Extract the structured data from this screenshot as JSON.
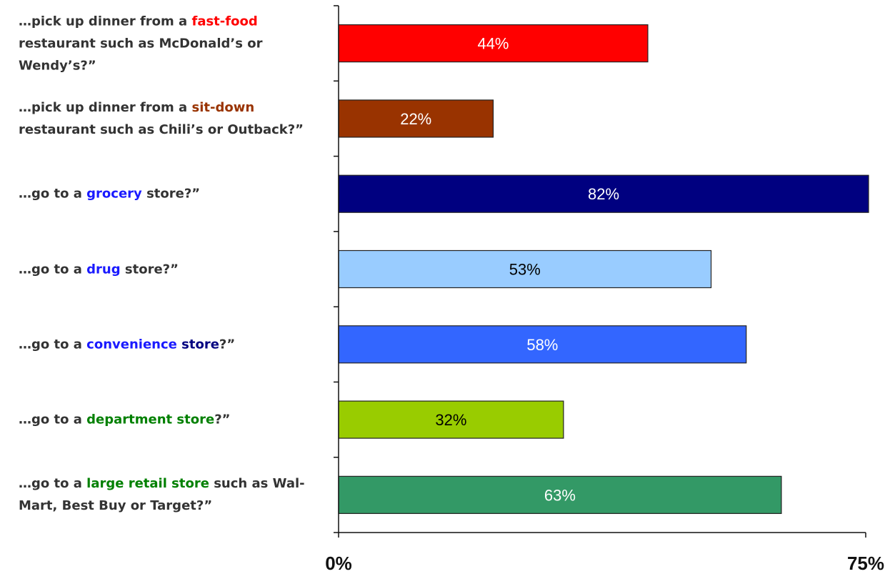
{
  "chart_data": {
    "type": "bar",
    "orientation": "horizontal",
    "categories": [
      [
        {
          "text": "…pick up dinner from a ",
          "color": "#333333"
        },
        {
          "text": "fast-food",
          "color": "#ff0000"
        },
        {
          "text": " restaurant such as McDonald’s or Wendy’s?”",
          "color": "#333333"
        }
      ],
      [
        {
          "text": "…pick up dinner from a ",
          "color": "#333333"
        },
        {
          "text": "sit-down",
          "color": "#993300"
        },
        {
          "text": " restaurant such as Chili’s or Outback?”",
          "color": "#333333"
        }
      ],
      [
        {
          "text": "…go to a ",
          "color": "#333333"
        },
        {
          "text": "grocery",
          "color": "#1a1aff"
        },
        {
          "text": " store?”",
          "color": "#333333"
        }
      ],
      [
        {
          "text": "…go to a ",
          "color": "#333333"
        },
        {
          "text": "drug",
          "color": "#1a1aff"
        },
        {
          "text": " store?”",
          "color": "#333333"
        }
      ],
      [
        {
          "text": "…go to a ",
          "color": "#333333"
        },
        {
          "text": "convenience",
          "color": "#1a1aff"
        },
        {
          "text": " ",
          "color": "#333333"
        },
        {
          "text": "store",
          "color": "#000080"
        },
        {
          "text": "?”",
          "color": "#333333"
        }
      ],
      [
        {
          "text": "…go to a ",
          "color": "#333333"
        },
        {
          "text": "department store",
          "color": "#008000"
        },
        {
          "text": "?”",
          "color": "#333333"
        }
      ],
      [
        {
          "text": "…go to a ",
          "color": "#333333"
        },
        {
          "text": "large retail store",
          "color": "#008000"
        },
        {
          "text": " such as Wal-Mart, Best Buy or Target?”",
          "color": "#333333"
        }
      ]
    ],
    "values": [
      44,
      22,
      82,
      53,
      58,
      32,
      63
    ],
    "value_labels": [
      "44%",
      "22%",
      "82%",
      "53%",
      "58%",
      "32%",
      "63%"
    ],
    "bar_colors": [
      "#ff0000",
      "#993300",
      "#000080",
      "#99ccff",
      "#3366ff",
      "#99cc00",
      "#339966"
    ],
    "bar_label_colors": [
      "#ffffff",
      "#ffffff",
      "#ffffff",
      "#000000",
      "#ffffff",
      "#000000",
      "#ffffff"
    ],
    "xlim": [
      0,
      75
    ],
    "x_tick_labels": [
      {
        "value": 0,
        "label": "0%"
      },
      {
        "value": 75,
        "label": "75%"
      }
    ],
    "title": "",
    "xlabel": "",
    "ylabel": "",
    "grid": false
  }
}
